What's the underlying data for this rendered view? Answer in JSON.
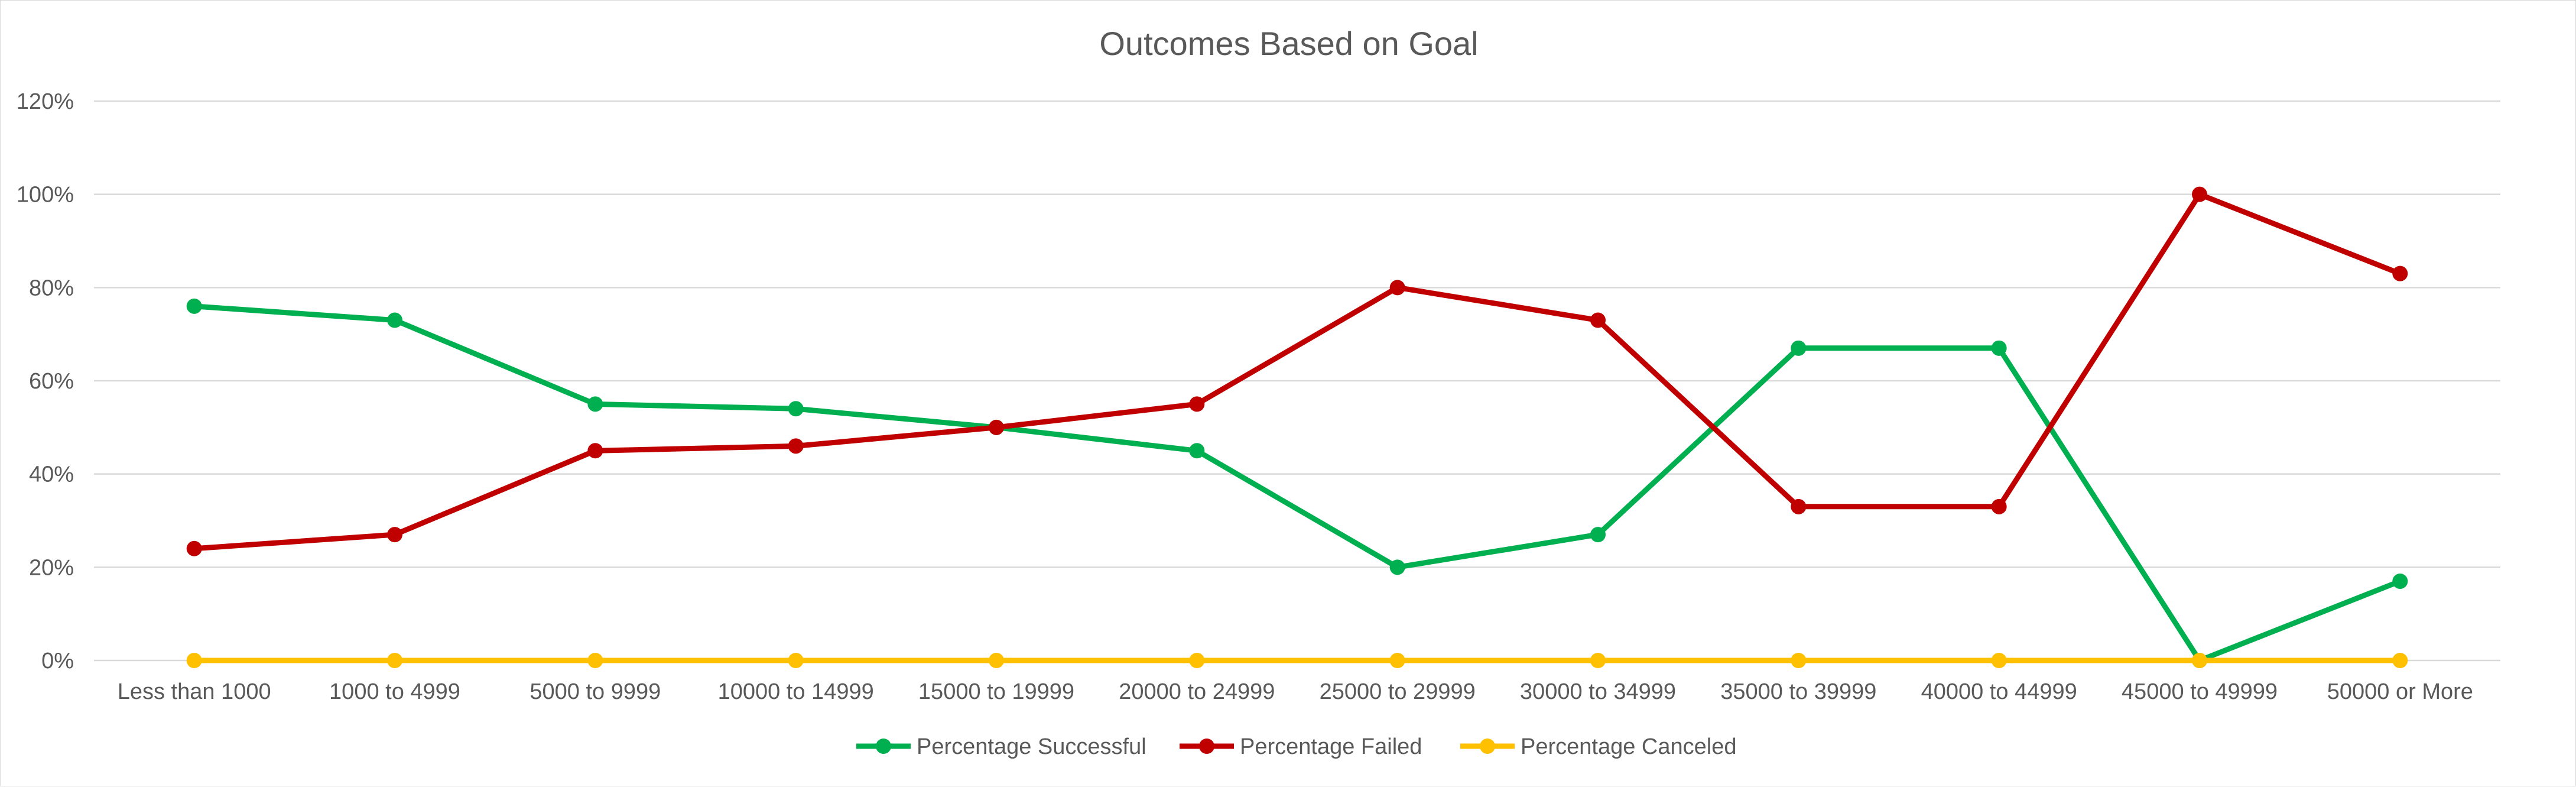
{
  "chart_data": {
    "type": "line",
    "title": "Outcomes Based on Goal",
    "xlabel": "",
    "ylabel": "",
    "ylim": [
      0,
      1.2
    ],
    "y_ticks": [
      "0%",
      "20%",
      "40%",
      "60%",
      "80%",
      "100%",
      "120%"
    ],
    "grid": true,
    "legend_position": "bottom",
    "categories": [
      "Less than 1000",
      "1000 to 4999",
      "5000 to 9999",
      "10000 to 14999",
      "15000 to 19999",
      "20000 to 24999",
      "25000 to 29999",
      "30000 to 34999",
      "35000 to 39999",
      "40000 to 44999",
      "45000 to 49999",
      "50000 or More"
    ],
    "series": [
      {
        "name": "Percentage Successful",
        "color": "#00b050",
        "values": [
          0.76,
          0.73,
          0.55,
          0.54,
          0.5,
          0.45,
          0.2,
          0.27,
          0.67,
          0.67,
          0.0,
          0.17
        ]
      },
      {
        "name": "Percentage Failed",
        "color": "#c00000",
        "values": [
          0.24,
          0.27,
          0.45,
          0.46,
          0.5,
          0.55,
          0.8,
          0.73,
          0.33,
          0.33,
          1.0,
          0.83
        ]
      },
      {
        "name": "Percentage Canceled",
        "color": "#ffc000",
        "values": [
          0,
          0,
          0,
          0,
          0,
          0,
          0,
          0,
          0,
          0,
          0,
          0
        ]
      }
    ]
  }
}
